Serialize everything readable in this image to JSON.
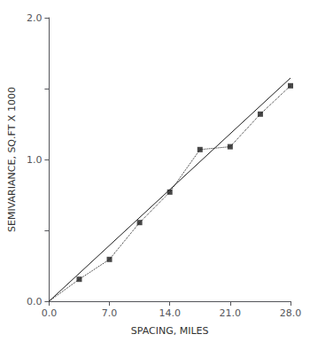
{
  "chart_data": {
    "type": "scatter",
    "xlabel": "SPACING, MILES",
    "ylabel": "SEMIVARIANCE, SQ.FT X 1000",
    "xlim": [
      0.0,
      28.0
    ],
    "ylim": [
      0.0,
      2.0
    ],
    "xticks": [
      {
        "value": 0.0,
        "label": "0.0"
      },
      {
        "value": 7.0,
        "label": "7.0"
      },
      {
        "value": 14.0,
        "label": "14.0"
      },
      {
        "value": 21.0,
        "label": "21.0"
      },
      {
        "value": 28.0,
        "label": "28.0"
      }
    ],
    "yticks": [
      {
        "value": 0.0,
        "label": "0.0"
      },
      {
        "value": 0.5,
        "label": ""
      },
      {
        "value": 1.0,
        "label": "1.0"
      },
      {
        "value": 1.5,
        "label": ""
      },
      {
        "value": 2.0,
        "label": "2.0"
      }
    ],
    "grid": false,
    "series": [
      {
        "type": "line",
        "line_style": "solid",
        "color": "#1a1a1a",
        "x": [
          0.0,
          28.0
        ],
        "values": [
          0.0,
          1.575
        ]
      },
      {
        "type": "line",
        "line_style": "dotted",
        "color": "#1a1a1a",
        "x": [
          0.0,
          3.5,
          7.0,
          10.5,
          14.0,
          17.5,
          21.0,
          24.5,
          28.0
        ],
        "values": [
          0.0,
          0.155,
          0.295,
          0.555,
          0.77,
          1.07,
          1.09,
          1.32,
          1.52
        ]
      },
      {
        "type": "scatter",
        "marker": "square",
        "color": "#1a1a1a",
        "x": [
          3.5,
          7.0,
          10.5,
          14.0,
          17.5,
          21.0,
          24.5,
          28.0
        ],
        "values": [
          0.155,
          0.295,
          0.555,
          0.77,
          1.07,
          1.09,
          1.32,
          1.52
        ]
      }
    ]
  }
}
